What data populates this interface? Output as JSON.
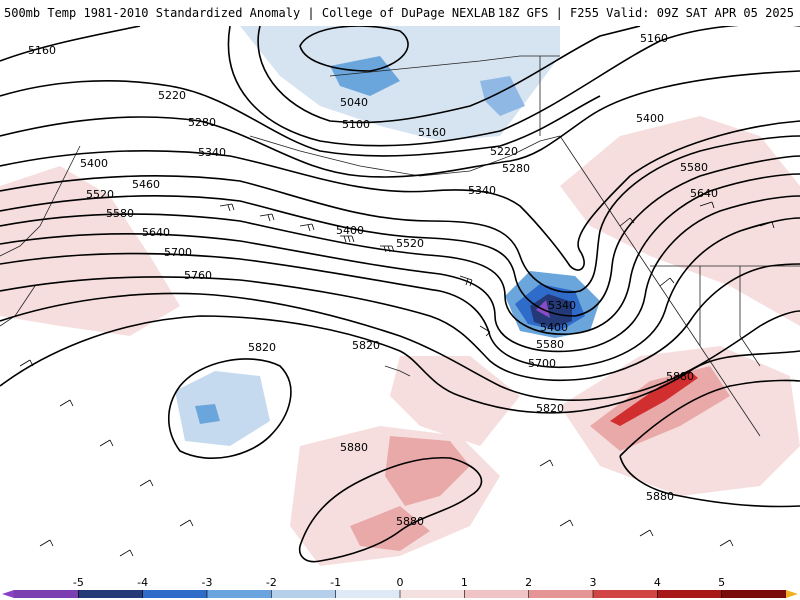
{
  "header": {
    "title_left": "500mb Temp 1981-2010 Standardized Anomaly | College of DuPage NEXLAB",
    "title_right": "18Z GFS | F255 Valid: 09Z SAT APR 05 2025"
  },
  "contour_labels": [
    {
      "id": "5160-nw",
      "text": "5160"
    },
    {
      "id": "5160-ne",
      "text": "5160"
    },
    {
      "id": "5040",
      "text": "5040"
    },
    {
      "id": "5100",
      "text": "5100"
    },
    {
      "id": "5160-c",
      "text": "5160"
    },
    {
      "id": "5220-w",
      "text": "5220"
    },
    {
      "id": "5220-c",
      "text": "5220"
    },
    {
      "id": "5280-w",
      "text": "5280"
    },
    {
      "id": "5280-c",
      "text": "5280"
    },
    {
      "id": "5340-w",
      "text": "5340"
    },
    {
      "id": "5340-c",
      "text": "5340"
    },
    {
      "id": "5340-low",
      "text": "5340"
    },
    {
      "id": "5400-w",
      "text": "5400"
    },
    {
      "id": "5400-c",
      "text": "5400"
    },
    {
      "id": "5400-ne",
      "text": "5400"
    },
    {
      "id": "5400-low",
      "text": "5400"
    },
    {
      "id": "5460",
      "text": "5460"
    },
    {
      "id": "5520-w",
      "text": "5520"
    },
    {
      "id": "5520-c",
      "text": "5520"
    },
    {
      "id": "5580-w",
      "text": "5580"
    },
    {
      "id": "5580-ne",
      "text": "5580"
    },
    {
      "id": "5580-low",
      "text": "5580"
    },
    {
      "id": "5640-w",
      "text": "5640"
    },
    {
      "id": "5640-ne",
      "text": "5640"
    },
    {
      "id": "5700-w",
      "text": "5700"
    },
    {
      "id": "5700-c",
      "text": "5700"
    },
    {
      "id": "5760",
      "text": "5760"
    },
    {
      "id": "5820-w",
      "text": "5820"
    },
    {
      "id": "5820-c",
      "text": "5820"
    },
    {
      "id": "5820-s",
      "text": "5820"
    },
    {
      "id": "5880-c",
      "text": "5880"
    },
    {
      "id": "5880-e",
      "text": "5880"
    },
    {
      "id": "5880-s",
      "text": "5880"
    },
    {
      "id": "5880-se",
      "text": "5880"
    }
  ],
  "colorbar": {
    "ticks": [
      "-5",
      "-4",
      "-3",
      "-2",
      "-1",
      "0",
      "1",
      "2",
      "3",
      "4",
      "5"
    ],
    "colors": [
      "#7b3fb2",
      "#243a78",
      "#2f6bc9",
      "#6aa4de",
      "#b5cfea",
      "#dde9f5",
      "#f5e0e0",
      "#f0c4c4",
      "#e69595",
      "#d24545",
      "#a81818",
      "#7a0c0c"
    ],
    "cap_low_color": "#8a3fc4",
    "cap_high_color": "#f0b020"
  },
  "colors": {
    "warm_light": "#f6dede",
    "warm_mid": "#eaa9a9",
    "warm_strong": "#d12f2f",
    "cold_light": "#d6e4f2",
    "cold_mid": "#6aa6dc",
    "cold_strong": "#2f6bc9",
    "cold_deep": "#243a78",
    "cold_extreme": "#8a4cc4"
  }
}
